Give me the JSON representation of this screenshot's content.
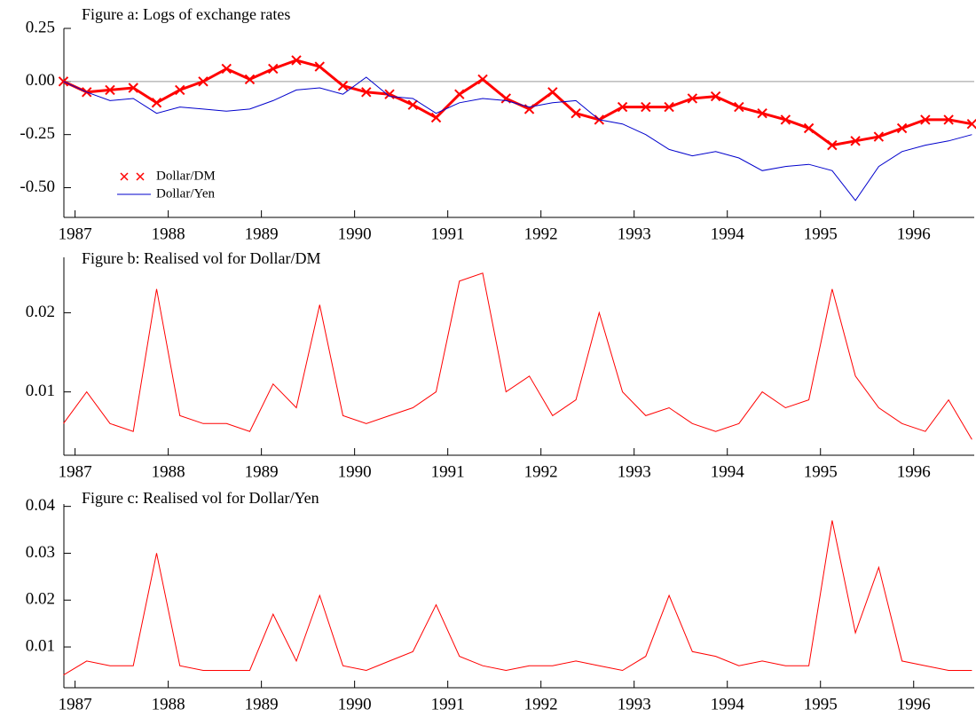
{
  "chart_data": [
    {
      "type": "line",
      "title": "Figure a: Logs of exchange rates",
      "x": [
        1986.875,
        1987.125,
        1987.375,
        1987.625,
        1987.875,
        1988.125,
        1988.375,
        1988.625,
        1988.875,
        1989.125,
        1989.375,
        1989.625,
        1989.875,
        1990.125,
        1990.375,
        1990.625,
        1990.875,
        1991.125,
        1991.375,
        1991.625,
        1991.875,
        1992.125,
        1992.375,
        1992.625,
        1992.875,
        1993.125,
        1993.375,
        1993.625,
        1993.875,
        1994.125,
        1994.375,
        1994.625,
        1994.875,
        1995.125,
        1995.375,
        1995.625,
        1995.875,
        1996.125,
        1996.375,
        1996.625
      ],
      "series": [
        {
          "name": "Dollar/DM",
          "color": "#ff0000",
          "marker": "x",
          "values": [
            0.0,
            -0.05,
            -0.04,
            -0.03,
            -0.1,
            -0.04,
            0.0,
            0.06,
            0.01,
            0.06,
            0.1,
            0.07,
            -0.02,
            -0.05,
            -0.06,
            -0.11,
            -0.17,
            -0.06,
            0.01,
            -0.08,
            -0.13,
            -0.05,
            -0.15,
            -0.18,
            -0.12,
            -0.12,
            -0.12,
            -0.08,
            -0.07,
            -0.12,
            -0.15,
            -0.18,
            -0.22,
            -0.3,
            -0.28,
            -0.26,
            -0.22,
            -0.18,
            -0.18,
            -0.2
          ]
        },
        {
          "name": "Dollar/Yen",
          "color": "#0000cc",
          "values": [
            0.0,
            -0.05,
            -0.09,
            -0.08,
            -0.15,
            -0.12,
            -0.13,
            -0.14,
            -0.13,
            -0.09,
            -0.04,
            -0.03,
            -0.06,
            0.02,
            -0.07,
            -0.08,
            -0.15,
            -0.1,
            -0.08,
            -0.09,
            -0.12,
            -0.1,
            -0.09,
            -0.18,
            -0.2,
            -0.25,
            -0.32,
            -0.35,
            -0.33,
            -0.36,
            -0.42,
            -0.4,
            -0.39,
            -0.42,
            -0.56,
            -0.4,
            -0.33,
            -0.3,
            -0.28,
            -0.25
          ]
        }
      ],
      "hline": 0,
      "legend": "lower left",
      "xlim": [
        1986.88,
        1996.65
      ],
      "xticks": [
        1987,
        1988,
        1989,
        1990,
        1991,
        1992,
        1993,
        1994,
        1995,
        1996
      ],
      "ylim": [
        -0.64,
        0.25
      ],
      "yticks": [
        {
          "value": 0.25,
          "label": "0.25"
        },
        {
          "value": 0,
          "label": "0.00"
        },
        {
          "value": -0.25,
          "label": "-0.25"
        },
        {
          "value": -0.5,
          "label": "-0.50"
        }
      ]
    },
    {
      "type": "line",
      "title": "Figure b: Realised vol for Dollar/DM",
      "x": [
        1986.875,
        1987.125,
        1987.375,
        1987.625,
        1987.875,
        1988.125,
        1988.375,
        1988.625,
        1988.875,
        1989.125,
        1989.375,
        1989.625,
        1989.875,
        1990.125,
        1990.375,
        1990.625,
        1990.875,
        1991.125,
        1991.375,
        1991.625,
        1991.875,
        1992.125,
        1992.375,
        1992.625,
        1992.875,
        1993.125,
        1993.375,
        1993.625,
        1993.875,
        1994.125,
        1994.375,
        1994.625,
        1994.875,
        1995.125,
        1995.375,
        1995.625,
        1995.875,
        1996.125,
        1996.375,
        1996.625
      ],
      "series": [
        {
          "color": "#ff0000",
          "values": [
            0.006,
            0.01,
            0.006,
            0.005,
            0.023,
            0.007,
            0.006,
            0.006,
            0.005,
            0.011,
            0.008,
            0.021,
            0.007,
            0.006,
            0.007,
            0.008,
            0.01,
            0.024,
            0.025,
            0.01,
            0.012,
            0.007,
            0.009,
            0.02,
            0.01,
            0.007,
            0.008,
            0.006,
            0.005,
            0.006,
            0.01,
            0.008,
            0.009,
            0.023,
            0.012,
            0.008,
            0.006,
            0.005,
            0.009,
            0.004
          ]
        }
      ],
      "xlim": [
        1986.88,
        1996.65
      ],
      "xticks": [
        1987,
        1988,
        1989,
        1990,
        1991,
        1992,
        1993,
        1994,
        1995,
        1996
      ],
      "ylim": [
        0.002,
        0.027
      ],
      "yticks": [
        0.01,
        0.02
      ]
    },
    {
      "type": "line",
      "title": "Figure c: Realised vol for Dollar/Yen",
      "x": [
        1986.875,
        1987.125,
        1987.375,
        1987.625,
        1987.875,
        1988.125,
        1988.375,
        1988.625,
        1988.875,
        1989.125,
        1989.375,
        1989.625,
        1989.875,
        1990.125,
        1990.375,
        1990.625,
        1990.875,
        1991.125,
        1991.375,
        1991.625,
        1991.875,
        1992.125,
        1992.375,
        1992.625,
        1992.875,
        1993.125,
        1993.375,
        1993.625,
        1993.875,
        1994.125,
        1994.375,
        1994.625,
        1994.875,
        1995.125,
        1995.375,
        1995.625,
        1995.875,
        1996.125,
        1996.375,
        1996.625
      ],
      "series": [
        {
          "color": "#ff0000",
          "values": [
            0.004,
            0.007,
            0.006,
            0.006,
            0.03,
            0.006,
            0.005,
            0.005,
            0.005,
            0.017,
            0.007,
            0.021,
            0.006,
            0.005,
            0.007,
            0.009,
            0.019,
            0.008,
            0.006,
            0.005,
            0.006,
            0.006,
            0.007,
            0.006,
            0.005,
            0.008,
            0.021,
            0.009,
            0.008,
            0.006,
            0.007,
            0.006,
            0.006,
            0.037,
            0.013,
            0.027,
            0.007,
            0.006,
            0.005,
            0.005
          ]
        }
      ],
      "xlim": [
        1986.88,
        1996.65
      ],
      "xticks": [
        1987,
        1988,
        1989,
        1990,
        1991,
        1992,
        1993,
        1994,
        1995,
        1996
      ],
      "ylim": [
        0.0013,
        0.0405
      ],
      "yticks": [
        0.01,
        0.02,
        0.03,
        0.04
      ]
    }
  ]
}
